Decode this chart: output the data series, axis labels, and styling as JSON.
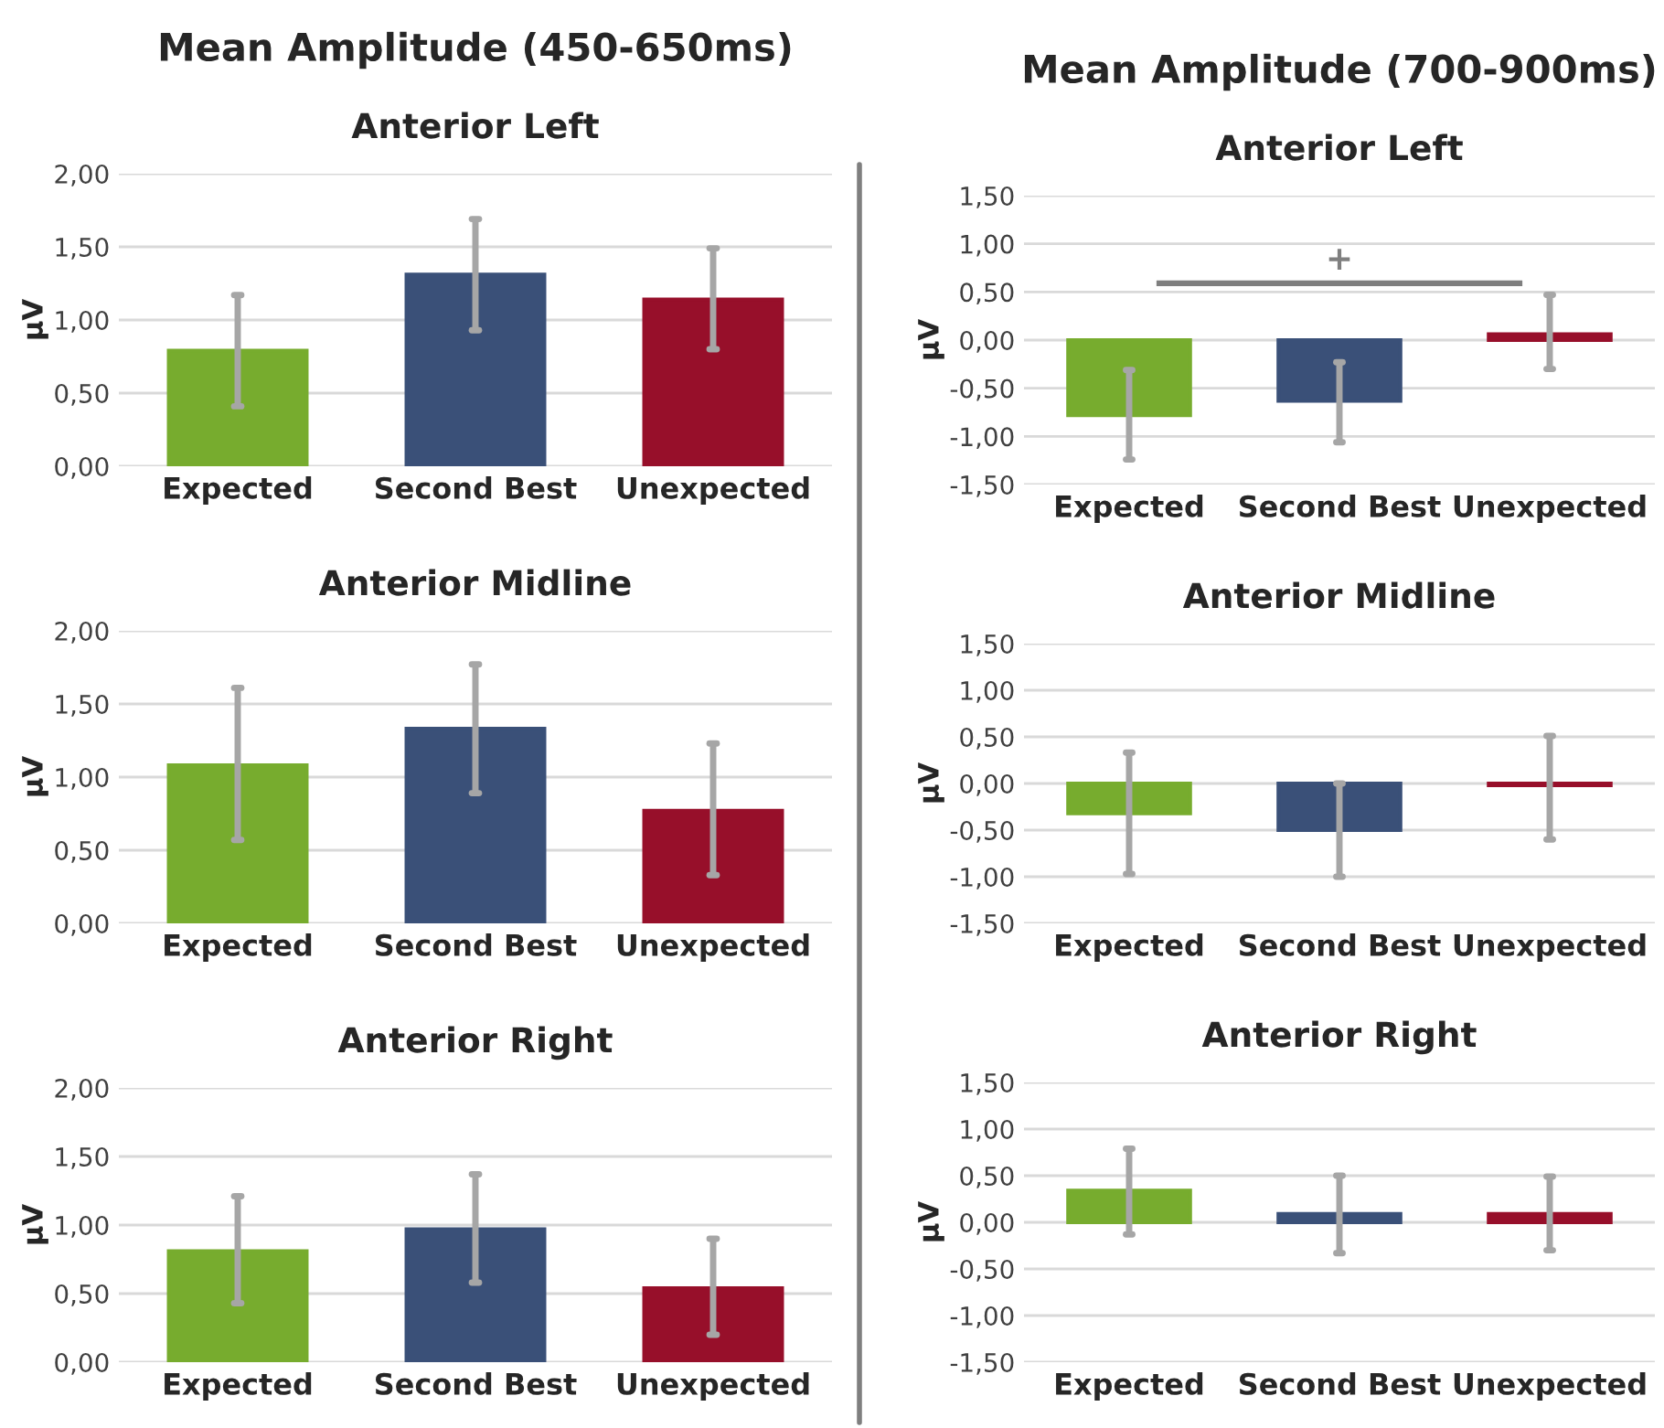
{
  "chart_data": [
    {
      "type": "other",
      "title": "Mean Amplitude (450-650ms)"
    },
    {
      "type": "bar",
      "title": "Anterior Left",
      "ylabel": "µV",
      "categories": [
        "Expected",
        "Second Best",
        "Unexpected"
      ],
      "values": [
        0.79,
        1.31,
        1.14
      ],
      "colors": [
        "#77ac2e",
        "#3a5078",
        "#970f2a"
      ],
      "errors": [
        [
          0.41,
          1.17
        ],
        [
          0.93,
          1.69
        ],
        [
          0.8,
          1.49
        ]
      ],
      "ylim": [
        0,
        2
      ],
      "yticks": [
        {
          "value": 0,
          "label": "0,00"
        },
        {
          "value": 0.5,
          "label": "0,50"
        },
        {
          "value": 1,
          "label": "1,00"
        },
        {
          "value": 1.5,
          "label": "1,50"
        },
        {
          "value": 2,
          "label": "2,00"
        }
      ],
      "grid": "y"
    },
    {
      "type": "bar",
      "title": "Anterior Midline",
      "ylabel": "µV",
      "categories": [
        "Expected",
        "Second Best",
        "Unexpected"
      ],
      "values": [
        1.08,
        1.33,
        0.77
      ],
      "colors": [
        "#77ac2e",
        "#3a5078",
        "#970f2a"
      ],
      "errors": [
        [
          0.57,
          1.61
        ],
        [
          0.89,
          1.77
        ],
        [
          0.33,
          1.23
        ]
      ],
      "ylim": [
        0,
        2
      ],
      "yticks": [
        {
          "value": 0,
          "label": "0,00"
        },
        {
          "value": 0.5,
          "label": "0,50"
        },
        {
          "value": 1,
          "label": "1,00"
        },
        {
          "value": 1.5,
          "label": "1,50"
        },
        {
          "value": 2,
          "label": "2,00"
        }
      ],
      "grid": "y"
    },
    {
      "type": "bar",
      "title": "Anterior Right",
      "ylabel": "µV",
      "categories": [
        "Expected",
        "Second Best",
        "Unexpected"
      ],
      "values": [
        0.81,
        0.97,
        0.54
      ],
      "colors": [
        "#77ac2e",
        "#3a5078",
        "#970f2a"
      ],
      "errors": [
        [
          0.43,
          1.21
        ],
        [
          0.58,
          1.37
        ],
        [
          0.2,
          0.9
        ]
      ],
      "ylim": [
        0,
        2
      ],
      "yticks": [
        {
          "value": 0,
          "label": "0,00"
        },
        {
          "value": 0.5,
          "label": "0,50"
        },
        {
          "value": 1,
          "label": "1,00"
        },
        {
          "value": 1.5,
          "label": "1,50"
        },
        {
          "value": 2,
          "label": "2,00"
        }
      ],
      "grid": "y"
    },
    {
      "type": "other",
      "title": "Mean Amplitude (700-900ms)"
    },
    {
      "type": "bar",
      "title": "Anterior Left",
      "ylabel": "µV",
      "categories": [
        "Expected",
        "Second Best",
        "Unexpected"
      ],
      "values": [
        -0.78,
        -0.63,
        0.06
      ],
      "colors": [
        "#77ac2e",
        "#3a5078",
        "#970f2a"
      ],
      "errors": [
        [
          -1.24,
          -0.31
        ],
        [
          -1.06,
          -0.23
        ],
        [
          -0.3,
          0.47
        ]
      ],
      "ylim": [
        -1.5,
        1.5
      ],
      "yticks": [
        {
          "value": -1.5,
          "label": "-1,50"
        },
        {
          "value": -1,
          "label": "-1,00"
        },
        {
          "value": -0.5,
          "label": "-0,50"
        },
        {
          "value": 0,
          "label": "0,00"
        },
        {
          "value": 0.5,
          "label": "0,50"
        },
        {
          "value": 1,
          "label": "1,00"
        },
        {
          "value": 1.5,
          "label": "1,50"
        }
      ],
      "grid": "y",
      "annotations": [
        "+"
      ]
    },
    {
      "type": "bar",
      "title": "Anterior Midline",
      "ylabel": "µV",
      "categories": [
        "Expected",
        "Second Best",
        "Unexpected"
      ],
      "values": [
        -0.32,
        -0.5,
        -0.02
      ],
      "colors": [
        "#77ac2e",
        "#3a5078",
        "#970f2a"
      ],
      "errors": [
        [
          -0.97,
          0.33
        ],
        [
          -1.0,
          0.0
        ],
        [
          -0.6,
          0.51
        ]
      ],
      "ylim": [
        -1.5,
        1.5
      ],
      "yticks": [
        {
          "value": -1.5,
          "label": "-1,50"
        },
        {
          "value": -1,
          "label": "-1,00"
        },
        {
          "value": -0.5,
          "label": "-0,50"
        },
        {
          "value": 0,
          "label": "0,00"
        },
        {
          "value": 0.5,
          "label": "0,50"
        },
        {
          "value": 1,
          "label": "1,00"
        },
        {
          "value": 1.5,
          "label": "1,50"
        }
      ],
      "grid": "y"
    },
    {
      "type": "bar",
      "title": "Anterior Right",
      "ylabel": "µV",
      "categories": [
        "Expected",
        "Second Best",
        "Unexpected"
      ],
      "values": [
        0.34,
        0.09,
        0.09
      ],
      "colors": [
        "#77ac2e",
        "#3a5078",
        "#970f2a"
      ],
      "errors": [
        [
          -0.13,
          0.79
        ],
        [
          -0.33,
          0.5
        ],
        [
          -0.3,
          0.49
        ]
      ],
      "ylim": [
        -1.5,
        1.5
      ],
      "yticks": [
        {
          "value": -1.5,
          "label": "-1,50"
        },
        {
          "value": -1,
          "label": "-1,00"
        },
        {
          "value": -0.5,
          "label": "-0,50"
        },
        {
          "value": 0,
          "label": "0,00"
        },
        {
          "value": 0.5,
          "label": "0,50"
        },
        {
          "value": 1,
          "label": "1,00"
        },
        {
          "value": 1.5,
          "label": "1,50"
        }
      ],
      "grid": "y"
    }
  ]
}
